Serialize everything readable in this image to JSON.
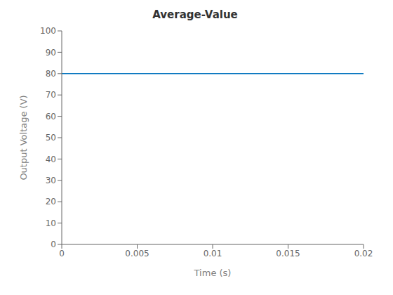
{
  "chart_data": {
    "type": "line",
    "title": "Average-Value",
    "xlabel": "Time (s)",
    "ylabel": "Output Voltage (V)",
    "x": [
      0,
      0.02
    ],
    "values": [
      80,
      80
    ],
    "color": "#0072BD",
    "xlim": [
      0,
      0.02
    ],
    "ylim": [
      0,
      100
    ],
    "xticks": [
      0,
      0.005,
      0.01,
      0.015,
      0.02
    ],
    "yticks": [
      0,
      10,
      20,
      30,
      40,
      50,
      60,
      70,
      80,
      90,
      100
    ],
    "grid": false
  }
}
